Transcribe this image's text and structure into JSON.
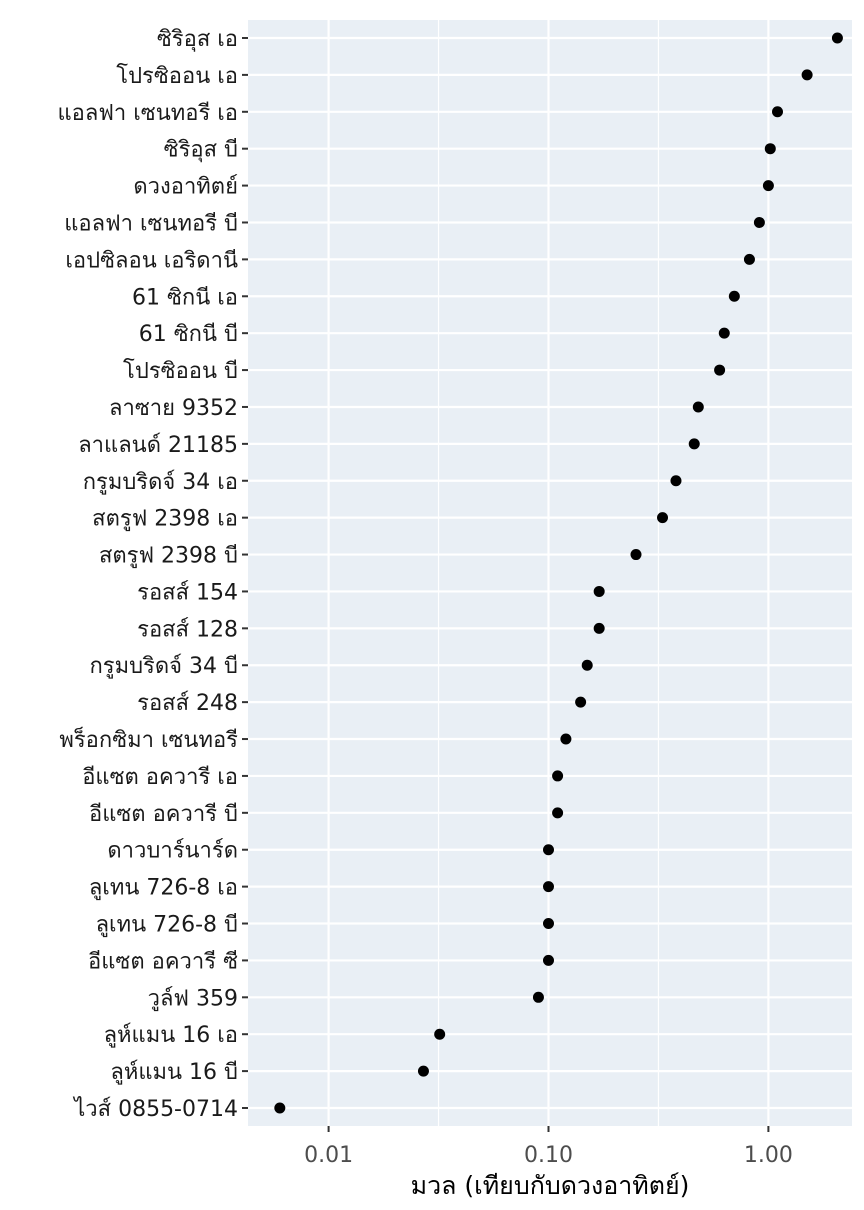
{
  "colors": {
    "panel": "#e9eff5",
    "grid": "#ffffff",
    "point": "#000000",
    "tick": "#333333"
  },
  "chart_data": {
    "type": "scatter",
    "subtype": "dot-plot",
    "xlabel": "มวล (เทียบกับดวงอาทิตย์)",
    "ylabel": "",
    "x_scale": "log10",
    "xlim": [
      0.0043,
      2.4
    ],
    "x_ticks": [
      0.01,
      0.1,
      1.0
    ],
    "x_tick_labels": [
      "0.01",
      "0.10",
      "1.00"
    ],
    "grid": true,
    "legend": "none",
    "categories": [
      "ซิริอุส เอ",
      "โปรซิออน เอ",
      "แอลฟา เซนทอรี เอ",
      "ซิริอุส บี",
      "ดวงอาทิตย์",
      "แอลฟา เซนทอรี บี",
      "เอปซิลอน เอริดานี",
      "61 ซิกนี เอ",
      "61 ซิกนี บี",
      "โปรซิออน บี",
      "ลาซาย 9352",
      "ลาแลนด์ 21185",
      "กรูมบริดจ์ 34 เอ",
      "สตรูฟ 2398 เอ",
      "สตรูฟ 2398 บี",
      "รอสส์ 154",
      "รอสส์ 128",
      "กรูมบริดจ์ 34 บี",
      "รอสส์ 248",
      "พร็อกซิมา เซนทอรี",
      "อีแซต อควารี เอ",
      "อีแซต อควารี บี",
      "ดาวบาร์นาร์ด",
      "ลูเทน 726-8 เอ",
      "ลูเทน 726-8 บี",
      "อีแซต อควารี ซี",
      "วูล์ฟ 359",
      "ลูห์แมน 16 เอ",
      "ลูห์แมน 16 บี",
      "ไวส์ 0855-0714"
    ],
    "values": [
      2.06,
      1.5,
      1.1,
      1.02,
      1.0,
      0.91,
      0.82,
      0.7,
      0.63,
      0.6,
      0.48,
      0.46,
      0.38,
      0.33,
      0.25,
      0.17,
      0.17,
      0.15,
      0.14,
      0.12,
      0.11,
      0.11,
      0.1,
      0.1,
      0.1,
      0.1,
      0.09,
      0.032,
      0.027,
      0.006
    ]
  }
}
